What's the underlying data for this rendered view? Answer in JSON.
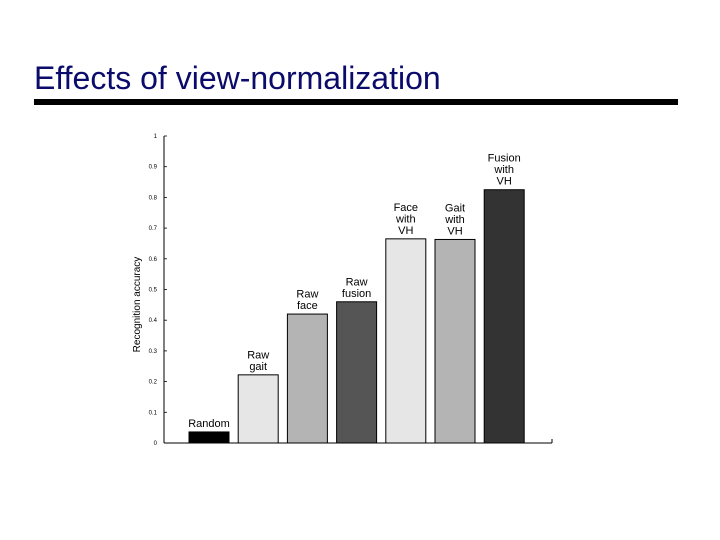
{
  "slide": {
    "title": "Effects of view-normalization"
  },
  "chart_data": {
    "type": "bar",
    "ylabel": "Recognition accuracy",
    "xlabel": "",
    "ylim": [
      0,
      1
    ],
    "yticks": [
      "0",
      "0.1",
      "0.2",
      "0.3",
      "0.4",
      "0.5",
      "0.6",
      "0.7",
      "0.8",
      "0.9",
      "1"
    ],
    "grid": false,
    "categories": [
      [
        "Random"
      ],
      [
        "Raw",
        "gait"
      ],
      [
        "Raw",
        "face"
      ],
      [
        "Raw",
        "fusion"
      ],
      [
        "Face",
        "with",
        "VH"
      ],
      [
        "Gait",
        "with",
        "VH"
      ],
      [
        "Fusion",
        "with",
        "VH"
      ]
    ],
    "values": [
      0.036,
      0.222,
      0.42,
      0.46,
      0.665,
      0.663,
      0.825
    ],
    "colors": [
      "#000000",
      "#e6e6e6",
      "#b4b4b4",
      "#555555",
      "#e6e6e6",
      "#b4b4b4",
      "#333333"
    ]
  }
}
